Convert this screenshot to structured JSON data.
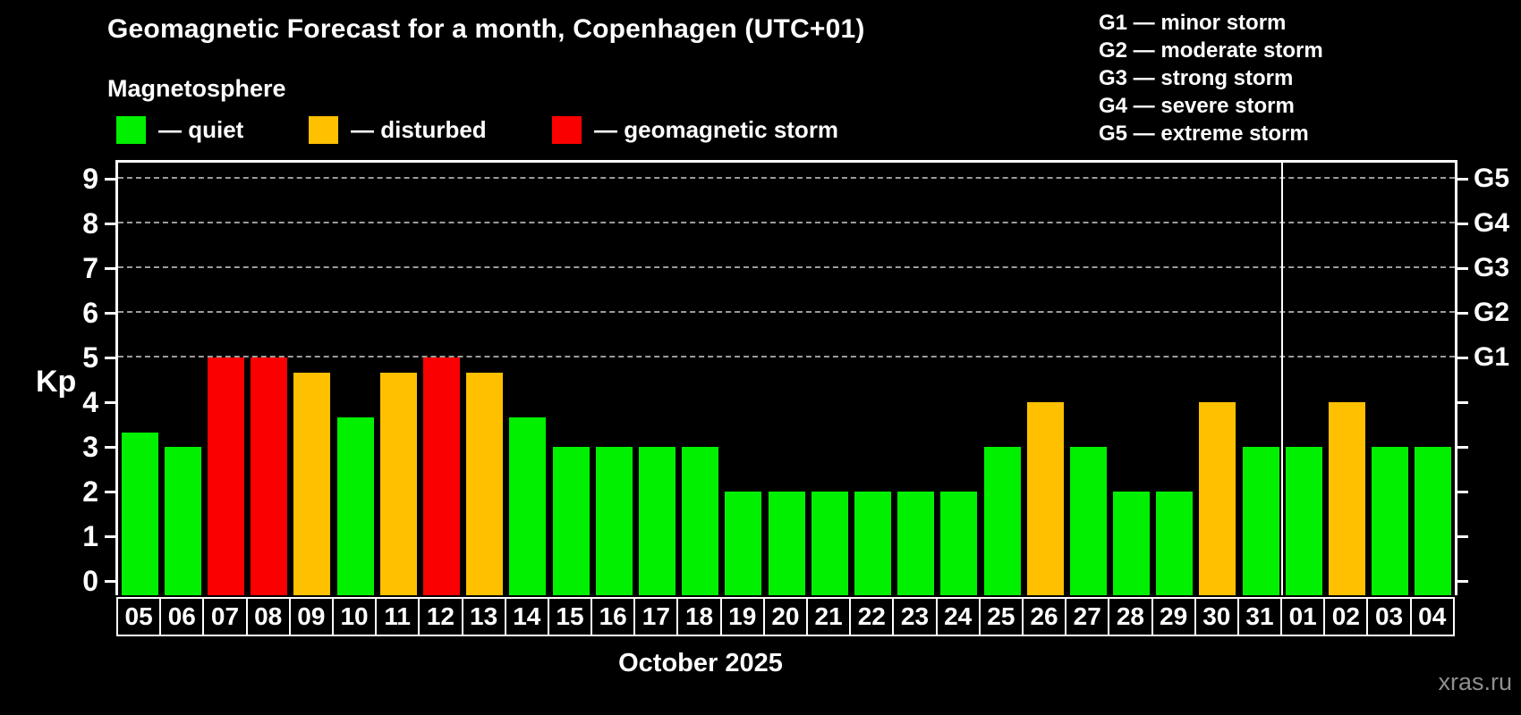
{
  "header": {
    "title": "Geomagnetic Forecast for a month, Copenhagen (UTC+01)"
  },
  "magnetosphere_legend": {
    "title": "Magnetosphere",
    "items": [
      {
        "status": "quiet",
        "label": "— quiet"
      },
      {
        "status": "disturbed",
        "label": "— disturbed"
      },
      {
        "status": "storm",
        "label": "— geomagnetic storm"
      }
    ]
  },
  "g_scale_legend": {
    "items": [
      {
        "label": "G1 — minor storm"
      },
      {
        "label": "G2 — moderate storm"
      },
      {
        "label": "G3 — strong storm"
      },
      {
        "label": "G4 — severe storm"
      },
      {
        "label": "G5 — extreme storm"
      }
    ]
  },
  "colors": {
    "quiet": "#00f000",
    "disturbed": "#ffc000",
    "storm": "#fb0000",
    "background": "#000000",
    "text": "#ffffff",
    "grid": "#9c9c9c",
    "watermark": "#8f8f8f"
  },
  "chart_data": {
    "type": "bar",
    "title": "Geomagnetic Forecast for a month, Copenhagen (UTC+01)",
    "subtitle": "Magnetosphere",
    "ylabel": "Kp",
    "xlabel": "October 2025",
    "ylim": [
      0,
      9.6
    ],
    "yticks": [
      0,
      1,
      2,
      3,
      4,
      5,
      6,
      7,
      8,
      9
    ],
    "gridlines_at_kp": [
      5,
      6,
      7,
      8,
      9
    ],
    "grid": "horizontal dashed at G-storm levels only",
    "legend_position": "top-left",
    "categories": [
      "05",
      "06",
      "07",
      "08",
      "09",
      "10",
      "11",
      "12",
      "13",
      "14",
      "15",
      "16",
      "17",
      "18",
      "19",
      "20",
      "21",
      "22",
      "23",
      "24",
      "25",
      "26",
      "27",
      "28",
      "29",
      "30",
      "31",
      "01",
      "02",
      "03",
      "04"
    ],
    "values": [
      3.33,
      3,
      5,
      5,
      4.67,
      3.67,
      4.67,
      5,
      4.67,
      3.67,
      3,
      3,
      3,
      3,
      2,
      2,
      2,
      2,
      2,
      2,
      3,
      4,
      3,
      2,
      2,
      4,
      3,
      3,
      4,
      3,
      3
    ],
    "statuses": [
      "quiet",
      "quiet",
      "storm",
      "storm",
      "disturbed",
      "quiet",
      "disturbed",
      "storm",
      "disturbed",
      "quiet",
      "quiet",
      "quiet",
      "quiet",
      "quiet",
      "quiet",
      "quiet",
      "quiet",
      "quiet",
      "quiet",
      "quiet",
      "quiet",
      "disturbed",
      "quiet",
      "quiet",
      "quiet",
      "disturbed",
      "quiet",
      "quiet",
      "disturbed",
      "quiet",
      "quiet"
    ],
    "month_separator_after_index": 26,
    "right_axis": [
      {
        "label": "G1",
        "kp": 5
      },
      {
        "label": "G2",
        "kp": 6
      },
      {
        "label": "G3",
        "kp": 7
      },
      {
        "label": "G4",
        "kp": 8
      },
      {
        "label": "G5",
        "kp": 9
      }
    ]
  },
  "footer": {
    "month_label": "October 2025",
    "watermark": "xras.ru"
  }
}
